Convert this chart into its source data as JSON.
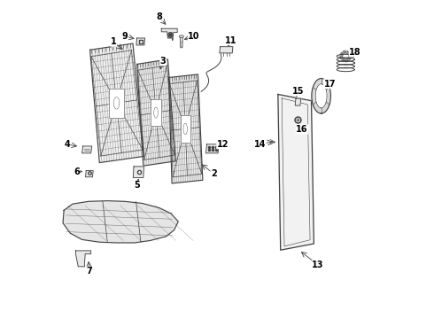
{
  "bg_color": "#ffffff",
  "line_color": "#404040",
  "label_color": "#000000",
  "figsize": [
    4.9,
    3.6
  ],
  "dpi": 100,
  "labels_config": [
    [
      1,
      0.175,
      0.87,
      0.21,
      0.84
    ],
    [
      2,
      0.49,
      0.455,
      0.445,
      0.49
    ],
    [
      3,
      0.33,
      0.81,
      0.318,
      0.775
    ],
    [
      4,
      0.028,
      0.548,
      0.068,
      0.54
    ],
    [
      5,
      0.248,
      0.418,
      0.255,
      0.448
    ],
    [
      6,
      0.058,
      0.462,
      0.085,
      0.462
    ],
    [
      7,
      0.098,
      0.148,
      0.095,
      0.188
    ],
    [
      8,
      0.318,
      0.948,
      0.345,
      0.918
    ],
    [
      9,
      0.21,
      0.888,
      0.248,
      0.878
    ],
    [
      10,
      0.428,
      0.888,
      0.388,
      0.875
    ],
    [
      11,
      0.545,
      0.875,
      0.53,
      0.848
    ],
    [
      12,
      0.518,
      0.548,
      0.488,
      0.538
    ],
    [
      13,
      0.818,
      0.168,
      0.758,
      0.215
    ],
    [
      14,
      0.635,
      0.548,
      0.685,
      0.558
    ],
    [
      15,
      0.755,
      0.715,
      0.748,
      0.688
    ],
    [
      16,
      0.768,
      0.595,
      0.758,
      0.618
    ],
    [
      17,
      0.855,
      0.738,
      0.845,
      0.718
    ],
    [
      18,
      0.935,
      0.838,
      0.918,
      0.818
    ]
  ]
}
